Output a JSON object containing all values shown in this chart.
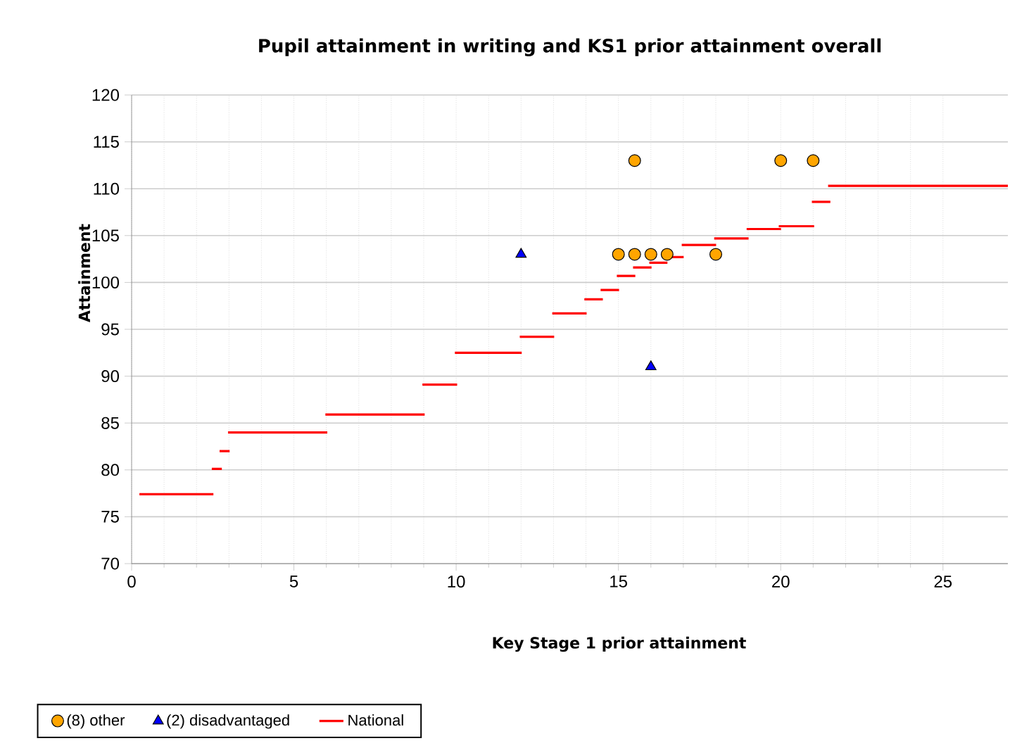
{
  "chart_data": {
    "type": "scatter",
    "title": "Pupil attainment in writing and KS1 prior attainment overall",
    "xlabel": "Key Stage 1 prior attainment",
    "ylabel": "Attainment",
    "xlim": [
      0,
      27
    ],
    "ylim": [
      70,
      120
    ],
    "xticks": [
      0,
      5,
      10,
      15,
      20,
      25
    ],
    "yticks": [
      70,
      75,
      80,
      85,
      90,
      95,
      100,
      105,
      110,
      115,
      120
    ],
    "grid": true,
    "legend": "bottom",
    "series": [
      {
        "name": "(8) other",
        "marker": "circle",
        "color": "#ffa500",
        "x": [
          15.5,
          20,
          21,
          15,
          15.5,
          16,
          16.5,
          18
        ],
        "values": [
          113,
          113,
          113,
          103,
          103,
          103,
          103,
          103
        ]
      },
      {
        "name": "(2) disadvantaged",
        "marker": "triangle",
        "color": "#0000ff",
        "x": [
          12,
          16
        ],
        "values": [
          103,
          91
        ]
      },
      {
        "name": "National",
        "type": "line",
        "marker": "none",
        "color": "#ff0000",
        "x": [
          0.24,
          2.52,
          null,
          2.47,
          2.78,
          null,
          2.71,
          3.02,
          null,
          2.97,
          6.03,
          null,
          5.97,
          9.03,
          null,
          8.96,
          10.03,
          null,
          9.96,
          12.02,
          null,
          11.96,
          13.02,
          null,
          12.96,
          14.02,
          null,
          13.95,
          14.52,
          null,
          14.45,
          15.02,
          null,
          14.95,
          15.52,
          null,
          15.45,
          16.02,
          null,
          15.95,
          16.51,
          null,
          16.62,
          17.01,
          null,
          16.95,
          18.01,
          null,
          17.95,
          19.01,
          null,
          18.95,
          20.01,
          null,
          19.94,
          21.03,
          null,
          20.96,
          21.53,
          null,
          21.46,
          27.0
        ],
        "values": [
          77.4,
          77.4,
          null,
          80.1,
          80.1,
          null,
          82.0,
          82.0,
          null,
          84.0,
          84.0,
          null,
          85.9,
          85.9,
          null,
          89.1,
          89.1,
          null,
          92.5,
          92.5,
          null,
          94.2,
          94.2,
          null,
          96.7,
          96.7,
          null,
          98.2,
          98.2,
          null,
          99.2,
          99.2,
          null,
          100.7,
          100.7,
          null,
          101.6,
          101.6,
          null,
          102.1,
          102.1,
          null,
          102.7,
          102.7,
          null,
          104.0,
          104.0,
          null,
          104.7,
          104.7,
          null,
          105.7,
          105.7,
          null,
          106.0,
          106.0,
          null,
          108.6,
          108.6,
          null,
          110.3,
          110.3
        ]
      }
    ]
  }
}
